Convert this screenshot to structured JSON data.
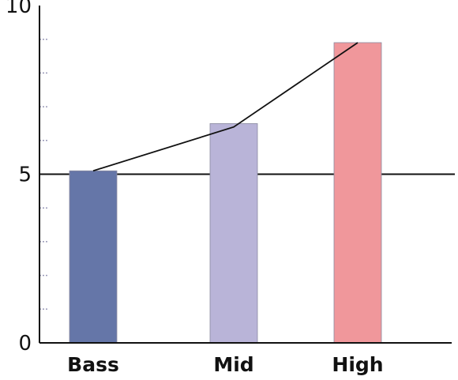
{
  "chart_data": {
    "type": "bar",
    "categories": [
      "Bass",
      "Mid",
      "High"
    ],
    "values": [
      5.1,
      6.5,
      8.9
    ],
    "colors": [
      "#6576a8",
      "#b9b4d8",
      "#f0979b"
    ],
    "line": {
      "values": [
        5.1,
        6.4,
        8.9
      ],
      "color": "#111111"
    },
    "reference_line": {
      "value": 5,
      "color": "#111111"
    },
    "ylim": [
      0,
      10
    ],
    "yticks": [
      "0",
      "5",
      "10"
    ],
    "minor_tick_step": 1,
    "grid": false,
    "title": "",
    "xlabel": "",
    "ylabel": ""
  }
}
